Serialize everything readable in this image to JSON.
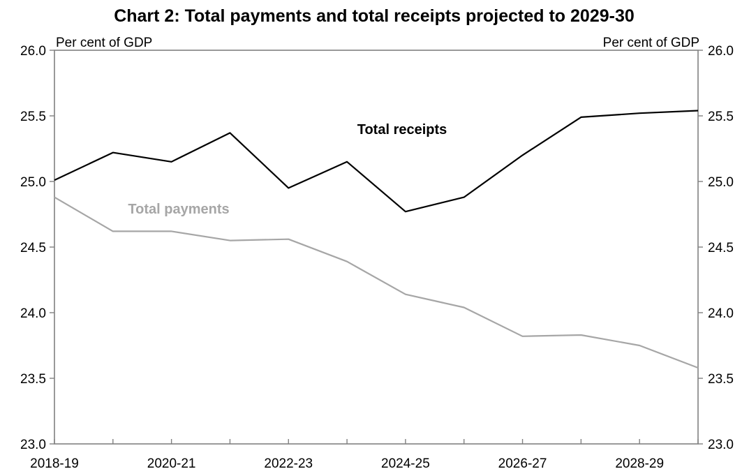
{
  "chart_data": {
    "type": "line",
    "title": "Chart 2: Total payments and total receipts projected to 2029-30",
    "ylabel_left": "Per cent of GDP",
    "ylabel_right": "Per cent of GDP",
    "ylim": [
      23.0,
      26.0
    ],
    "yticks": [
      23.0,
      23.5,
      24.0,
      24.5,
      25.0,
      25.5,
      26.0
    ],
    "ytick_labels": [
      "23.0",
      "23.5",
      "24.0",
      "24.5",
      "25.0",
      "25.5",
      "26.0"
    ],
    "x": [
      "2018-19",
      "2019-20",
      "2020-21",
      "2021-22",
      "2022-23",
      "2023-24",
      "2024-25",
      "2025-26",
      "2026-27",
      "2027-28",
      "2028-29",
      "2029-30"
    ],
    "xtick_labels": [
      "2018-19",
      "2020-21",
      "2022-23",
      "2024-25",
      "2026-27",
      "2028-29"
    ],
    "grid": false,
    "series": [
      {
        "name": "Total receipts",
        "color": "#000000",
        "values": [
          25.01,
          25.22,
          25.15,
          25.37,
          24.95,
          25.15,
          24.77,
          24.88,
          25.2,
          25.49,
          25.52,
          25.54
        ]
      },
      {
        "name": "Total payments",
        "color": "#a6a6a6",
        "values": [
          24.88,
          24.62,
          24.62,
          24.55,
          24.56,
          24.39,
          24.14,
          24.04,
          23.82,
          23.83,
          23.75,
          23.58
        ]
      }
    ]
  }
}
